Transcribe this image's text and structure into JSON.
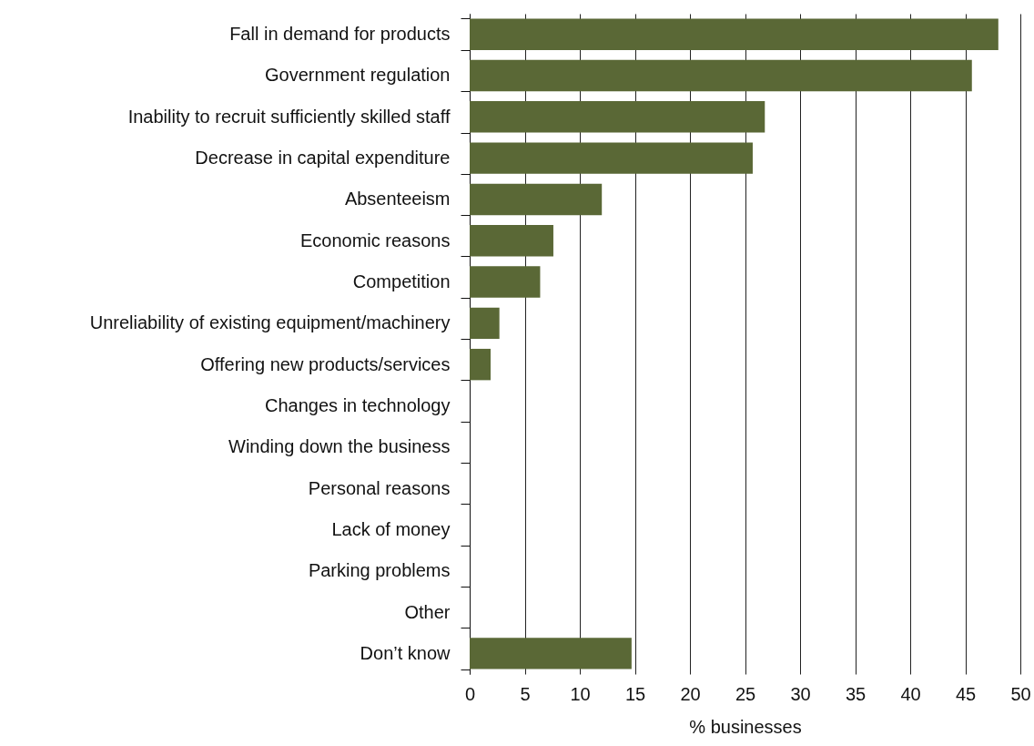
{
  "chart_data": {
    "type": "bar",
    "orientation": "horizontal",
    "xlabel": "% businesses",
    "categories": [
      "Fall in demand for products",
      "Government regulation",
      "Inability to recruit sufficiently skilled staff",
      "Decrease in capital expenditure",
      "Absenteeism",
      "Economic reasons",
      "Competition",
      "Unreliability of existing equipment/machinery",
      "Offering new products/services",
      "Changes in technology",
      "Winding down the business",
      "Personal reasons",
      "Lack of money",
      "Parking problems",
      "Other",
      "Don’t know"
    ],
    "values": [
      48.0,
      45.6,
      26.8,
      25.7,
      12.0,
      7.6,
      6.4,
      2.7,
      1.9,
      0,
      0,
      0,
      0,
      0,
      0,
      14.7
    ],
    "color": "#5a6836",
    "xlim": [
      0,
      50
    ],
    "xticks": [
      0,
      5,
      10,
      15,
      20,
      25,
      30,
      35,
      40,
      45,
      50
    ],
    "grid": "x"
  }
}
